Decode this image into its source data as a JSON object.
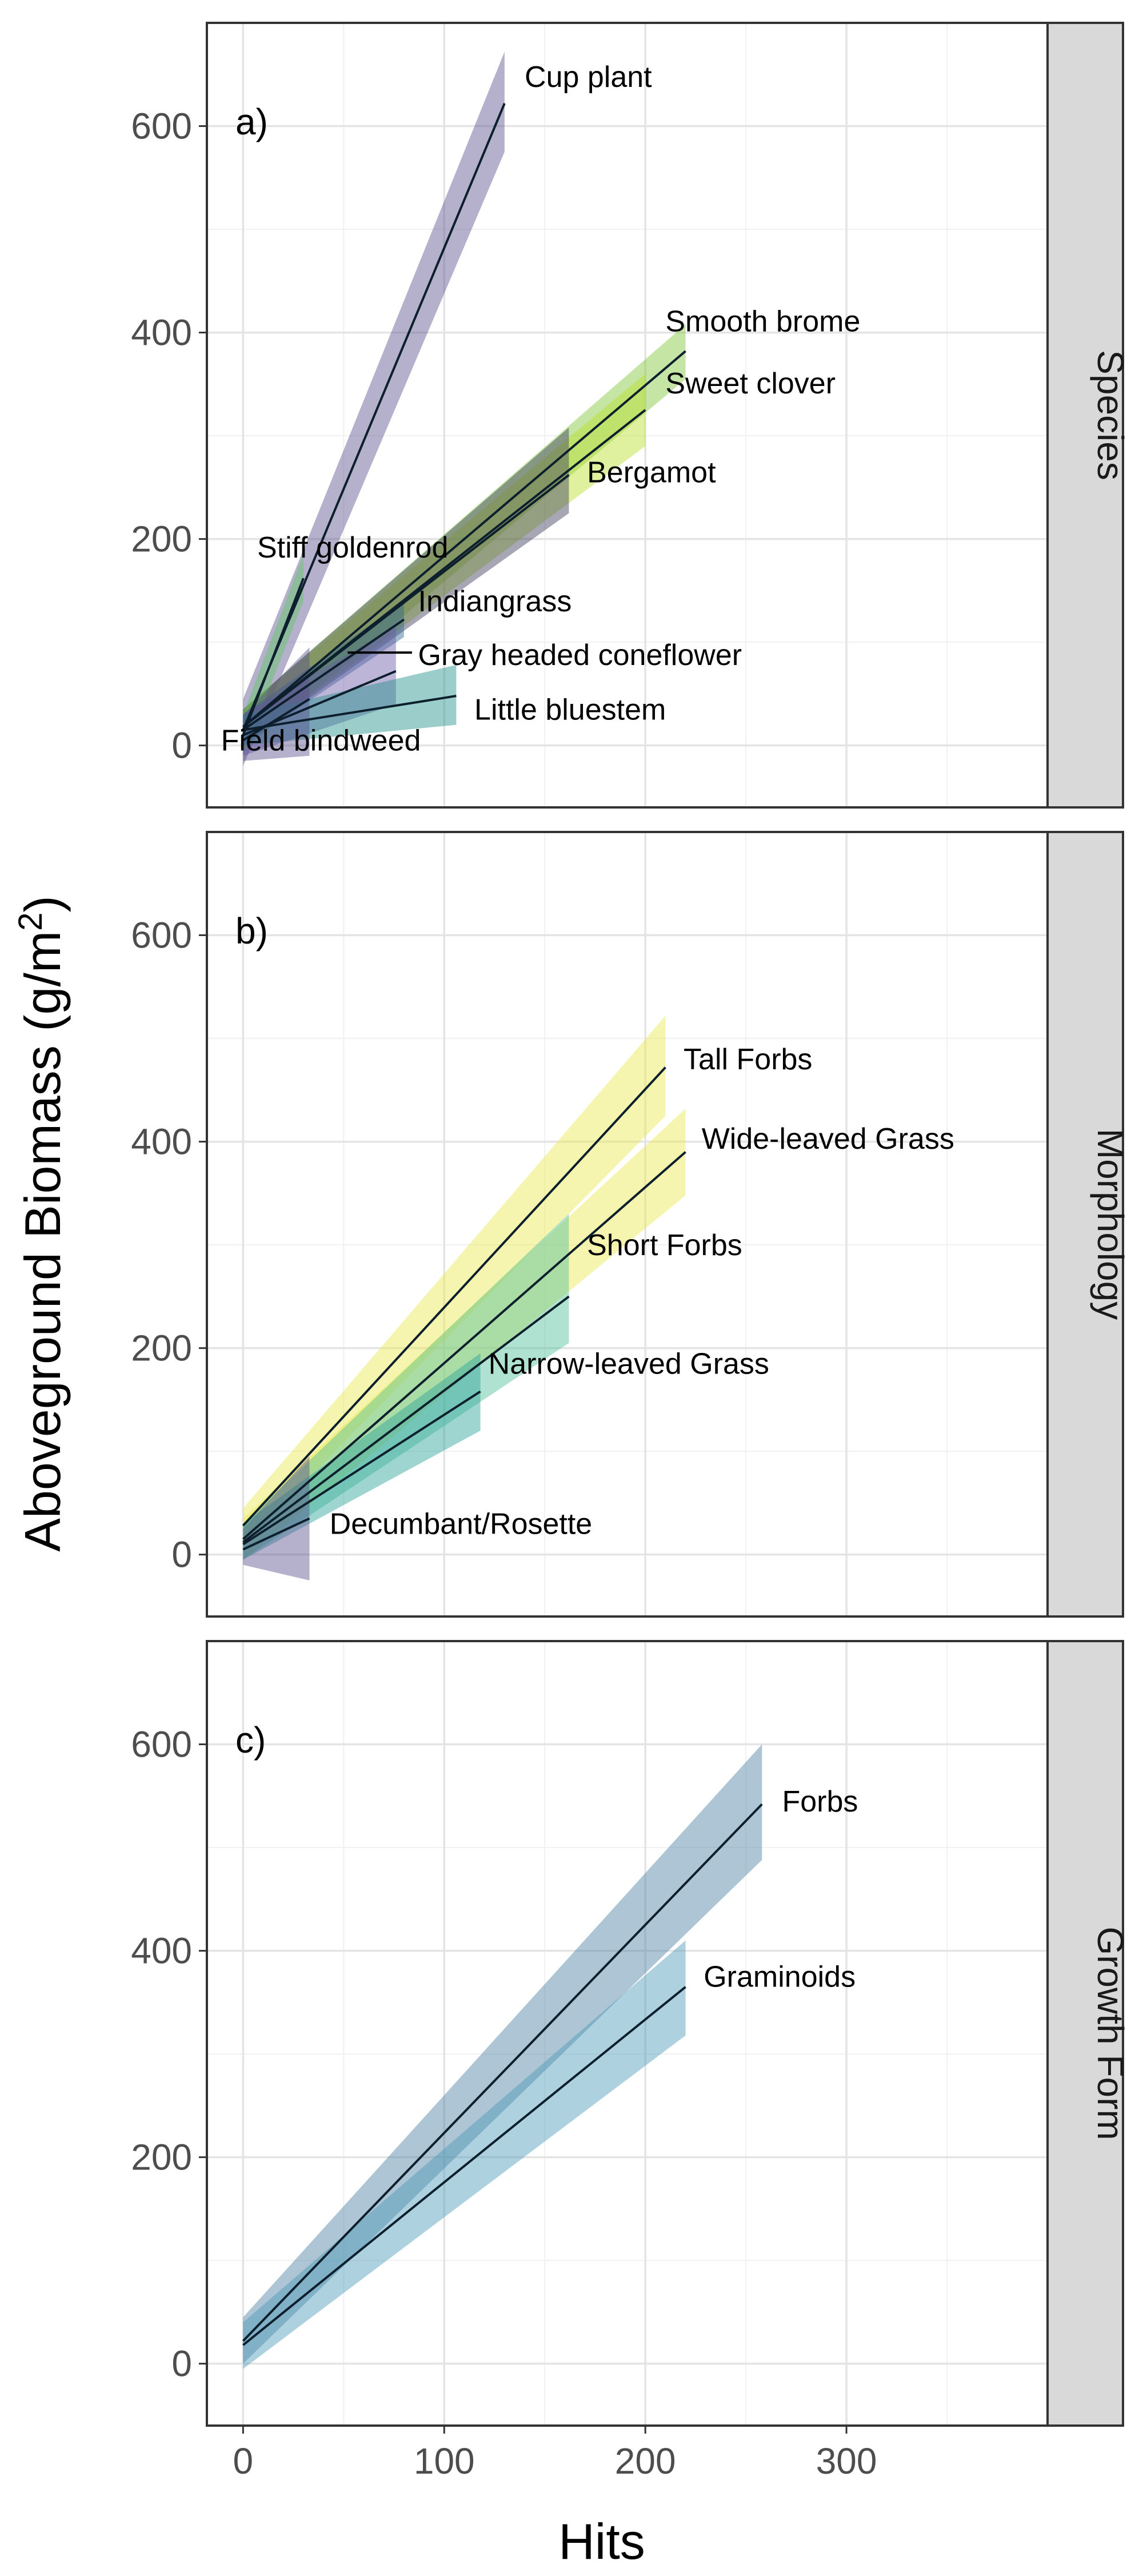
{
  "figure": {
    "ylabel_main": "Aboveground Biomass (g/m",
    "ylabel_sup": "2",
    "ylabel_close": ")",
    "xlabel": "Hits",
    "x_ticks": [
      "0",
      "100",
      "200",
      "300"
    ],
    "y_ticks": [
      "0",
      "200",
      "400",
      "600"
    ]
  },
  "chart_data": [
    {
      "type": "line",
      "panel_label": "a)",
      "strip_label": "Species",
      "xlabel": "Hits",
      "ylabel": "Aboveground Biomass (g/m2)",
      "xlim": [
        -18,
        400
      ],
      "ylim": [
        -60,
        700
      ],
      "grid": true,
      "legend": "none",
      "series": [
        {
          "name": "Cup plant",
          "x": [
            0,
            130
          ],
          "y": [
            15,
            622
          ],
          "lower": [
            -20,
            575
          ],
          "upper": [
            45,
            672
          ],
          "color": "#5b4f8f"
        },
        {
          "name": "Smooth brome",
          "x": [
            0,
            220
          ],
          "y": [
            18,
            382
          ],
          "lower": [
            -5,
            355
          ],
          "upper": [
            35,
            408
          ],
          "color": "#7fc638"
        },
        {
          "name": "Sweet clover",
          "x": [
            0,
            200
          ],
          "y": [
            18,
            325
          ],
          "lower": [
            0,
            290
          ],
          "upper": [
            35,
            360
          ],
          "color": "#b8de29"
        },
        {
          "name": "Bergamot",
          "x": [
            0,
            162
          ],
          "y": [
            18,
            262
          ],
          "lower": [
            0,
            225
          ],
          "upper": [
            35,
            308
          ],
          "color": "#3a3a5a"
        },
        {
          "name": "Stiff goldenrod",
          "x": [
            0,
            30
          ],
          "y": [
            10,
            162
          ],
          "lower": [
            -10,
            140
          ],
          "upper": [
            30,
            185
          ],
          "color": "#5ec962"
        },
        {
          "name": "Indiangrass",
          "x": [
            0,
            80
          ],
          "y": [
            15,
            122
          ],
          "lower": [
            0,
            105
          ],
          "upper": [
            30,
            140
          ],
          "color": "#31688e"
        },
        {
          "name": "Gray headed coneflower",
          "x": [
            0,
            76
          ],
          "y": [
            10,
            72
          ],
          "lower": [
            -10,
            40
          ],
          "upper": [
            30,
            115
          ],
          "color": "#6b5ba6"
        },
        {
          "name": "Little bluestem",
          "x": [
            0,
            106
          ],
          "y": [
            15,
            48
          ],
          "lower": [
            0,
            20
          ],
          "upper": [
            30,
            78
          ],
          "color": "#21918c"
        },
        {
          "name": "Field bindweed",
          "x": [
            0,
            33
          ],
          "y": [
            5,
            45
          ],
          "lower": [
            -15,
            -10
          ],
          "upper": [
            30,
            95
          ],
          "color": "#5b4f8f"
        }
      ],
      "annotations": [
        {
          "text": "Cup plant",
          "x": 140,
          "y": 648
        },
        {
          "text": "Smooth brome",
          "x": 210,
          "y": 411
        },
        {
          "text": "Sweet clover",
          "x": 210,
          "y": 351
        },
        {
          "text": "Bergamot",
          "x": 171,
          "y": 265
        },
        {
          "text": "Stiff goldenrod",
          "x": 7,
          "y": 192
        },
        {
          "text": "Indiangrass",
          "x": 87,
          "y": 140
        },
        {
          "text": "Gray headed coneflower",
          "x": 87,
          "y": 88
        },
        {
          "text": "Little bluestem",
          "x": 115,
          "y": 35
        },
        {
          "text": "Field bindweed",
          "x": -11,
          "y": 5
        }
      ],
      "leaders": [
        {
          "from": [
            52,
            90
          ],
          "to": [
            84,
            90
          ]
        }
      ]
    },
    {
      "type": "line",
      "panel_label": "b)",
      "strip_label": "Morphology",
      "xlabel": "Hits",
      "ylabel": "Aboveground Biomass (g/m2)",
      "xlim": [
        -18,
        400
      ],
      "ylim": [
        -60,
        700
      ],
      "grid": true,
      "legend": "none",
      "series": [
        {
          "name": "Tall Forbs",
          "x": [
            0,
            210
          ],
          "y": [
            28,
            472
          ],
          "lower": [
            10,
            425
          ],
          "upper": [
            45,
            522
          ],
          "color": "#e8e84d"
        },
        {
          "name": "Wide-leaved Grass",
          "x": [
            0,
            220
          ],
          "y": [
            15,
            390
          ],
          "lower": [
            -5,
            348
          ],
          "upper": [
            35,
            432
          ],
          "color": "#e8e84d"
        },
        {
          "name": "Short Forbs",
          "x": [
            0,
            162
          ],
          "y": [
            12,
            250
          ],
          "lower": [
            -5,
            205
          ],
          "upper": [
            30,
            330
          ],
          "color": "#4fbf9c"
        },
        {
          "name": "Narrow-leaved Grass",
          "x": [
            0,
            118
          ],
          "y": [
            10,
            158
          ],
          "lower": [
            -5,
            120
          ],
          "upper": [
            30,
            195
          ],
          "color": "#2aa198"
        },
        {
          "name": "Decumbant/Rosette",
          "x": [
            0,
            33
          ],
          "y": [
            5,
            35
          ],
          "lower": [
            -10,
            -25
          ],
          "upper": [
            25,
            95
          ],
          "color": "#5b4f8f"
        }
      ],
      "annotations": [
        {
          "text": "Tall Forbs",
          "x": 219,
          "y": 480
        },
        {
          "text": "Wide-leaved Grass",
          "x": 228,
          "y": 403
        },
        {
          "text": "Short Forbs",
          "x": 171,
          "y": 300
        },
        {
          "text": "Narrow-leaved Grass",
          "x": 122,
          "y": 185
        },
        {
          "text": "Decumbant/Rosette",
          "x": 43,
          "y": 30
        }
      ],
      "leaders": []
    },
    {
      "type": "line",
      "panel_label": "c)",
      "strip_label": "Growth Form",
      "xlabel": "Hits",
      "ylabel": "Aboveground Biomass (g/m2)",
      "xlim": [
        -18,
        400
      ],
      "ylim": [
        -60,
        700
      ],
      "grid": true,
      "legend": "none",
      "series": [
        {
          "name": "Forbs",
          "x": [
            0,
            258
          ],
          "y": [
            22,
            542
          ],
          "lower": [
            0,
            488
          ],
          "upper": [
            45,
            600
          ],
          "color": "#4a7ea0"
        },
        {
          "name": "Graminoids",
          "x": [
            0,
            220
          ],
          "y": [
            18,
            365
          ],
          "lower": [
            -5,
            318
          ],
          "upper": [
            40,
            410
          ],
          "color": "#4a9ab5"
        }
      ],
      "annotations": [
        {
          "text": "Forbs",
          "x": 268,
          "y": 545
        },
        {
          "text": "Graminoids",
          "x": 229,
          "y": 375
        }
      ],
      "leaders": []
    }
  ]
}
